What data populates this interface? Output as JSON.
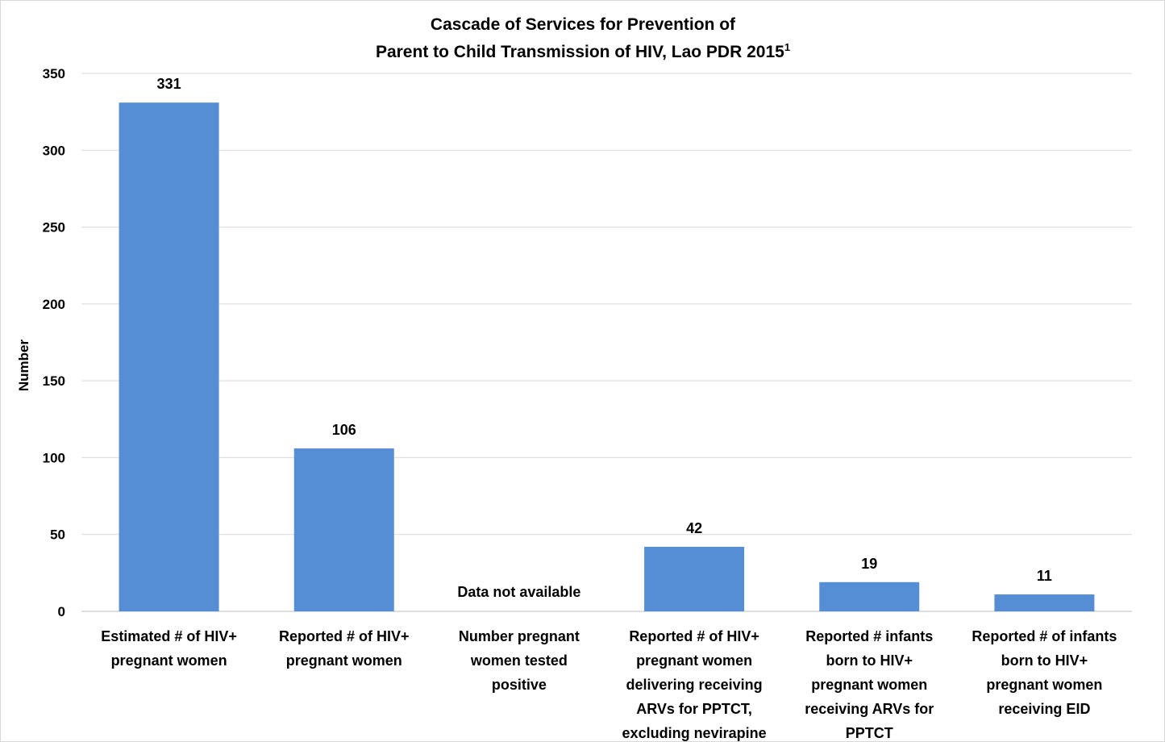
{
  "chart_data": {
    "type": "bar",
    "title": "Cascade of Services for Prevention of Parent to Child Transmission of HIV, Lao PDR 2015",
    "title_lines": [
      "Cascade of Services for Prevention of",
      "Parent to Child Transmission of HIV, Lao PDR 2015"
    ],
    "title_superscript": "1",
    "xlabel": "",
    "ylabel": "Number",
    "ylim": [
      0,
      350
    ],
    "yticks": [
      0,
      50,
      100,
      150,
      200,
      250,
      300,
      350
    ],
    "grid": true,
    "legend": "none",
    "bar_color": "#558ed5",
    "grid_color": "#d9d9d9",
    "categories": [
      [
        "Estimated # of HIV+",
        "pregnant women"
      ],
      [
        "Reported # of HIV+",
        "pregnant women"
      ],
      [
        "Number pregnant",
        "women tested",
        "positive"
      ],
      [
        "Reported # of HIV+",
        "pregnant women",
        "delivering receiving",
        "ARVs for PPTCT,",
        "excluding nevirapine"
      ],
      [
        "Reported # infants",
        "born to HIV+",
        "pregnant women",
        "receiving ARVs for",
        "PPTCT"
      ],
      [
        "Reported # of infants",
        "born to HIV+",
        "pregnant women",
        "receiving EID"
      ]
    ],
    "values": [
      331,
      106,
      null,
      42,
      19,
      11
    ],
    "data_labels": [
      "331",
      "106",
      "Data not available",
      "42",
      "19",
      "11"
    ]
  }
}
